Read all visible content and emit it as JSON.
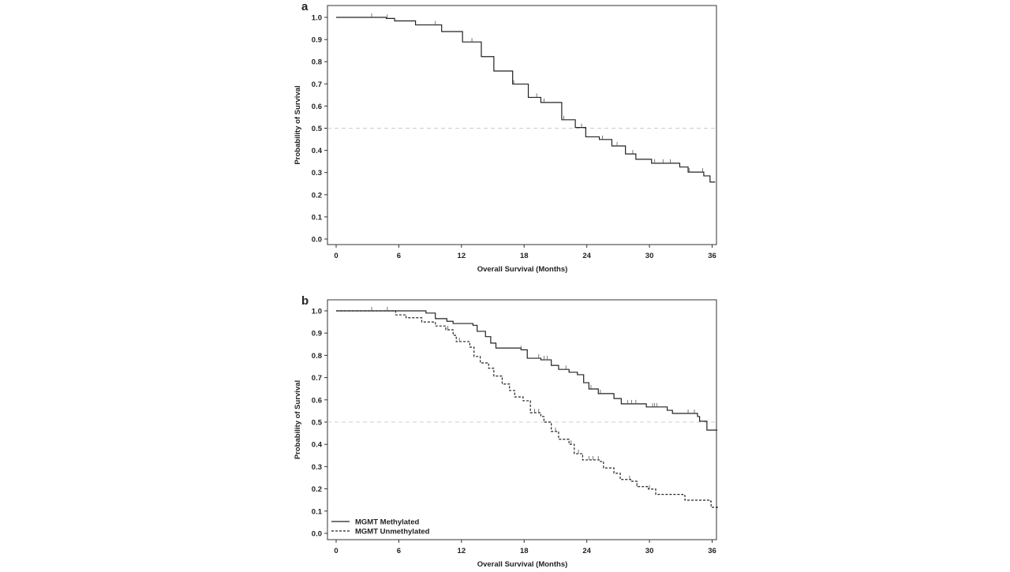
{
  "chart_data": [
    {
      "panel_label": "a",
      "type": "line",
      "step": true,
      "xlabel": "Overall Survival (Months)",
      "ylabel": "Probability of Survival",
      "xlim": [
        0,
        36.5
      ],
      "ylim": [
        0,
        1.0
      ],
      "xticks": [
        "0",
        "6",
        "12",
        "18",
        "24",
        "30",
        "36"
      ],
      "yticks": [
        "0.0",
        "0.1",
        "0.2",
        "0.3",
        "0.4",
        "0.5",
        "0.6",
        "0.7",
        "0.8",
        "0.9",
        "1.0"
      ],
      "reference_line": {
        "y": 0.5,
        "style": "dashed",
        "color": "#cccccc"
      },
      "grid": false,
      "series": [
        {
          "style": "solid",
          "color": "#222222",
          "x": [
            0,
            4.8,
            5.6,
            7.6,
            10.1,
            12.1,
            13.9,
            15.1,
            16.9,
            18.4,
            19.6,
            21.6,
            22.9,
            23.9,
            25.2,
            26.4,
            27.7,
            28.7,
            30.2,
            32.9,
            33.7,
            35.2,
            35.8,
            36.3
          ],
          "y": [
            1.0,
            0.995,
            0.984,
            0.966,
            0.936,
            0.889,
            0.823,
            0.758,
            0.699,
            0.639,
            0.616,
            0.538,
            0.503,
            0.461,
            0.449,
            0.42,
            0.384,
            0.36,
            0.342,
            0.325,
            0.302,
            0.285,
            0.257,
            0.257
          ],
          "censored": [
            3.4,
            4.9,
            9.5,
            13.0,
            17.0,
            19.2,
            19.9,
            21.8,
            23.5,
            25.5,
            26.9,
            28.4,
            30.5,
            31.3,
            32.0,
            33.8,
            35.1
          ]
        }
      ]
    },
    {
      "panel_label": "b",
      "type": "line",
      "step": true,
      "xlabel": "Overall Survival (Months)",
      "ylabel": "Probability of Survival",
      "xlim": [
        0,
        36.5
      ],
      "ylim": [
        0,
        1.0
      ],
      "xticks": [
        "0",
        "6",
        "12",
        "18",
        "24",
        "30",
        "36"
      ],
      "yticks": [
        "0.0",
        "0.1",
        "0.2",
        "0.3",
        "0.4",
        "0.5",
        "0.6",
        "0.7",
        "0.8",
        "0.9",
        "1.0"
      ],
      "reference_line": {
        "y": 0.5,
        "style": "dashed",
        "color": "#cccccc"
      },
      "grid": false,
      "legend": {
        "position": "bottom-left"
      },
      "series": [
        {
          "name": "MGMT Methylated",
          "style": "solid",
          "color": "#222222",
          "x": [
            0,
            8.6,
            9.5,
            10.6,
            11.2,
            13.1,
            13.5,
            14.3,
            14.8,
            15.3,
            17.7,
            18.3,
            19.6,
            20.6,
            21.3,
            22.3,
            23.1,
            23.7,
            24.2,
            25.1,
            26.6,
            27.3,
            29.7,
            31.7,
            32.2,
            34.6,
            34.8,
            35.5,
            36.5
          ],
          "y": [
            1.0,
            0.99,
            0.965,
            0.953,
            0.943,
            0.935,
            0.908,
            0.884,
            0.855,
            0.833,
            0.825,
            0.787,
            0.78,
            0.755,
            0.737,
            0.724,
            0.713,
            0.677,
            0.649,
            0.628,
            0.606,
            0.582,
            0.568,
            0.553,
            0.539,
            0.525,
            0.504,
            0.464,
            0.464
          ],
          "censored": [
            3.4,
            4.9,
            17.7,
            19.4,
            19.9,
            20.2,
            22.0,
            24.4,
            25.3,
            27.9,
            28.3,
            28.7,
            30.3,
            30.5,
            30.7,
            33.7,
            34.3
          ]
        },
        {
          "name": "MGMT Unmethylated",
          "style": "dashed",
          "color": "#222222",
          "x": [
            0,
            4.4,
            5.7,
            6.7,
            8.2,
            9.5,
            10.5,
            11.2,
            11.5,
            12.8,
            13.2,
            13.8,
            14.6,
            15.1,
            15.9,
            16.6,
            17.1,
            17.9,
            18.6,
            19.6,
            19.9,
            20.6,
            21.3,
            22.3,
            22.8,
            23.6,
            25.3,
            25.6,
            26.6,
            27.2,
            28.2,
            28.8,
            29.9,
            30.6,
            33.2,
            33.4,
            35.7,
            35.9,
            36.5
          ],
          "y": [
            1.0,
            1.0,
            0.982,
            0.969,
            0.95,
            0.932,
            0.915,
            0.89,
            0.862,
            0.837,
            0.795,
            0.766,
            0.742,
            0.707,
            0.671,
            0.642,
            0.613,
            0.596,
            0.542,
            0.525,
            0.5,
            0.458,
            0.423,
            0.4,
            0.358,
            0.33,
            0.323,
            0.294,
            0.27,
            0.242,
            0.234,
            0.21,
            0.199,
            0.175,
            0.17,
            0.149,
            0.145,
            0.117,
            0.11
          ],
          "censored": [
            10.7,
            11.8,
            19.0,
            19.4,
            21.0,
            22.5,
            23.2,
            24.2,
            24.6,
            25.1,
            28.1,
            28.8,
            30.0
          ]
        }
      ]
    }
  ]
}
